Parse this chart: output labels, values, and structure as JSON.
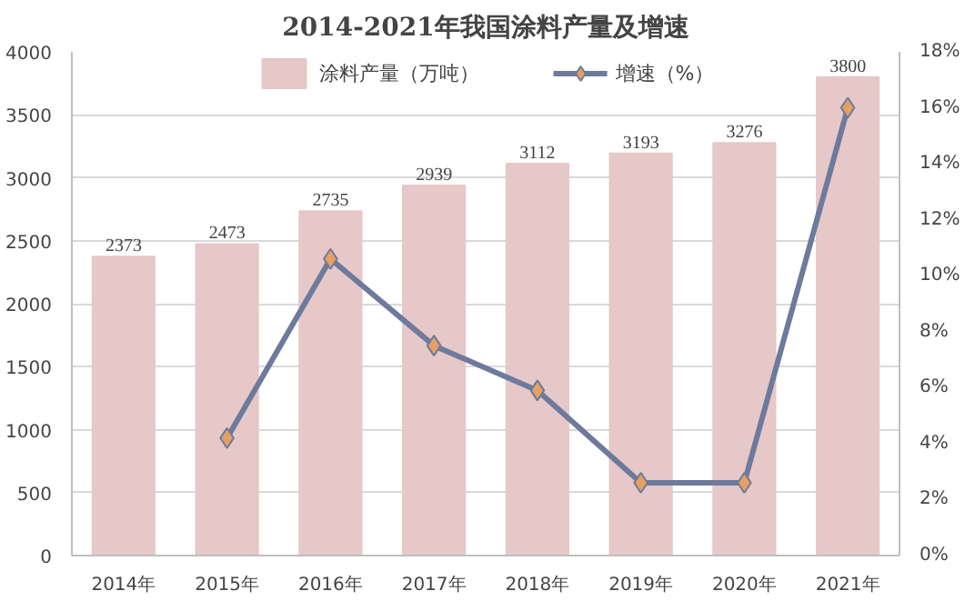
{
  "chart_data": {
    "type": "bar",
    "title": "2014-2021年我国涂料产量及增速",
    "categories": [
      "2014年",
      "2015年",
      "2016年",
      "2017年",
      "2018年",
      "2019年",
      "2020年",
      "2021年"
    ],
    "series": [
      {
        "name": "涂料产量（万吨）",
        "color": "#e6c8c8",
        "values": [
          2373,
          2473,
          2735,
          2939,
          3112,
          3193,
          3276,
          3800
        ],
        "value_labels": [
          "2373",
          "2473",
          "2735",
          "2939",
          "3112",
          "3193",
          "3276",
          "3800"
        ]
      },
      {
        "name": "增速（%）",
        "type": "line",
        "axis": "y2",
        "color": "#6d7a9c",
        "colors": [
          null,
          "#e6a064",
          "#e6a064",
          "#e6a064",
          "#e6a064",
          "#e6a064",
          "#e6a064",
          "#e6a064"
        ],
        "values": [
          null,
          4.2,
          10.6,
          7.5,
          5.9,
          2.6,
          2.6,
          16.0
        ]
      }
    ],
    "ylim": [
      0,
      4000
    ],
    "yticks": [
      0,
      500,
      1000,
      1500,
      2000,
      2500,
      3000,
      3500,
      4000
    ],
    "y2lim": [
      0,
      18
    ],
    "y2ticks": [
      {
        "value": 0,
        "label": "0%"
      },
      {
        "value": 2,
        "label": "2%"
      },
      {
        "value": 4,
        "label": "4%"
      },
      {
        "value": 6,
        "label": "6%"
      },
      {
        "value": 8,
        "label": "8%"
      },
      {
        "value": 10,
        "label": "10%"
      },
      {
        "value": 12,
        "label": "12%"
      },
      {
        "value": 14,
        "label": "14%"
      },
      {
        "value": 16,
        "label": "16%"
      },
      {
        "value": 18,
        "label": "18%"
      }
    ],
    "grid": "y",
    "legend": "top",
    "marker": "diamond"
  }
}
